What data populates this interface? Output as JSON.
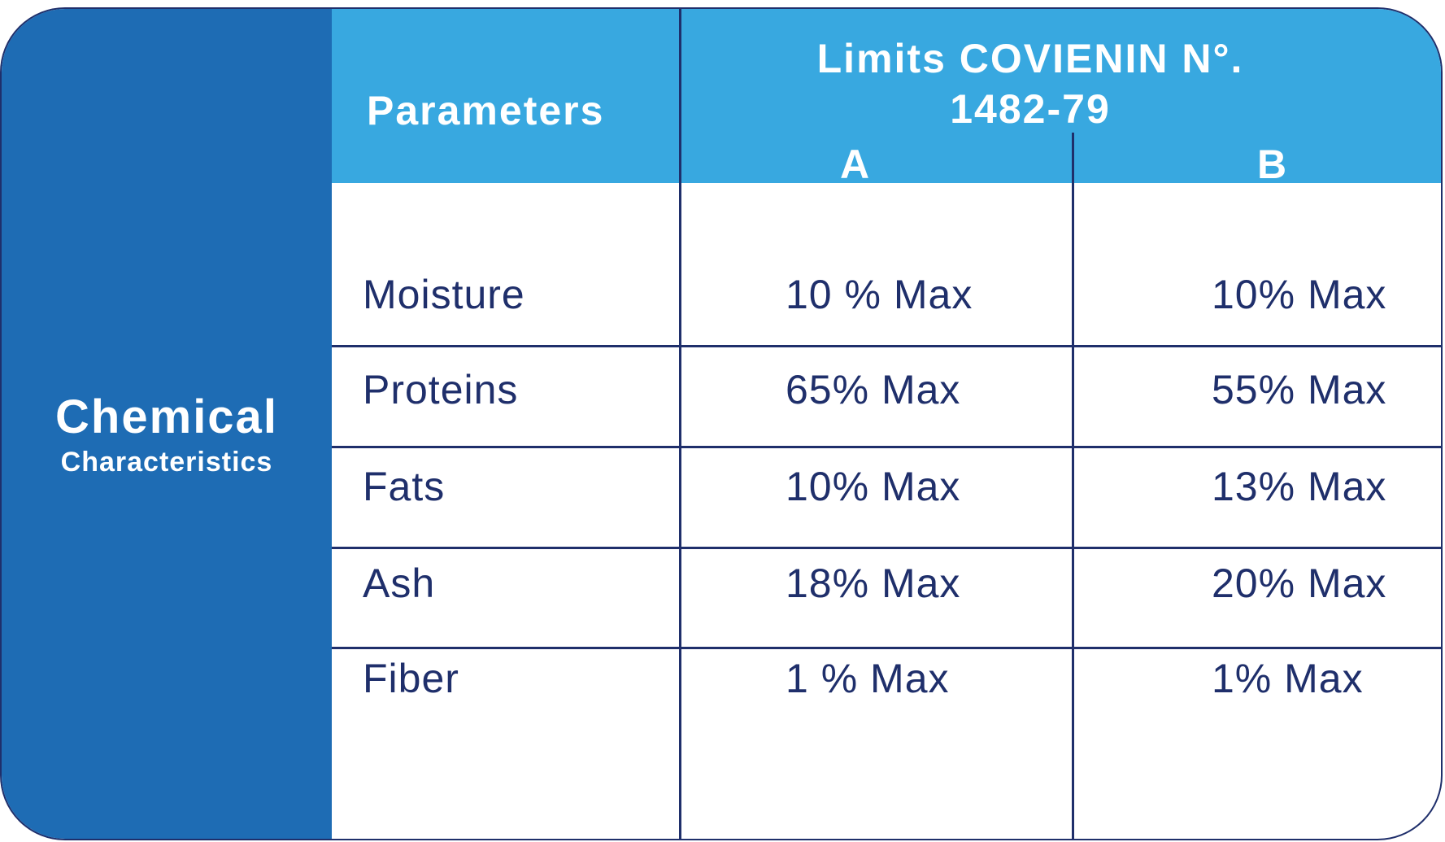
{
  "sidebar": {
    "title": "Chemical",
    "subtitle": "Characteristics"
  },
  "table": {
    "header": {
      "parameters": "Parameters",
      "limits": "Limits COVIENIN N°. 1482-79",
      "col_a": "A",
      "col_b": "B"
    },
    "rows": [
      [
        "Moisture",
        "10 % Max",
        "10% Max"
      ],
      [
        "Proteins",
        "65% Max",
        "55% Max"
      ],
      [
        "Fats",
        "10% Max",
        "13% Max"
      ],
      [
        "Ash",
        "18% Max",
        "20% Max"
      ],
      [
        "Fiber",
        "1 % Max",
        "1% Max"
      ]
    ]
  }
}
